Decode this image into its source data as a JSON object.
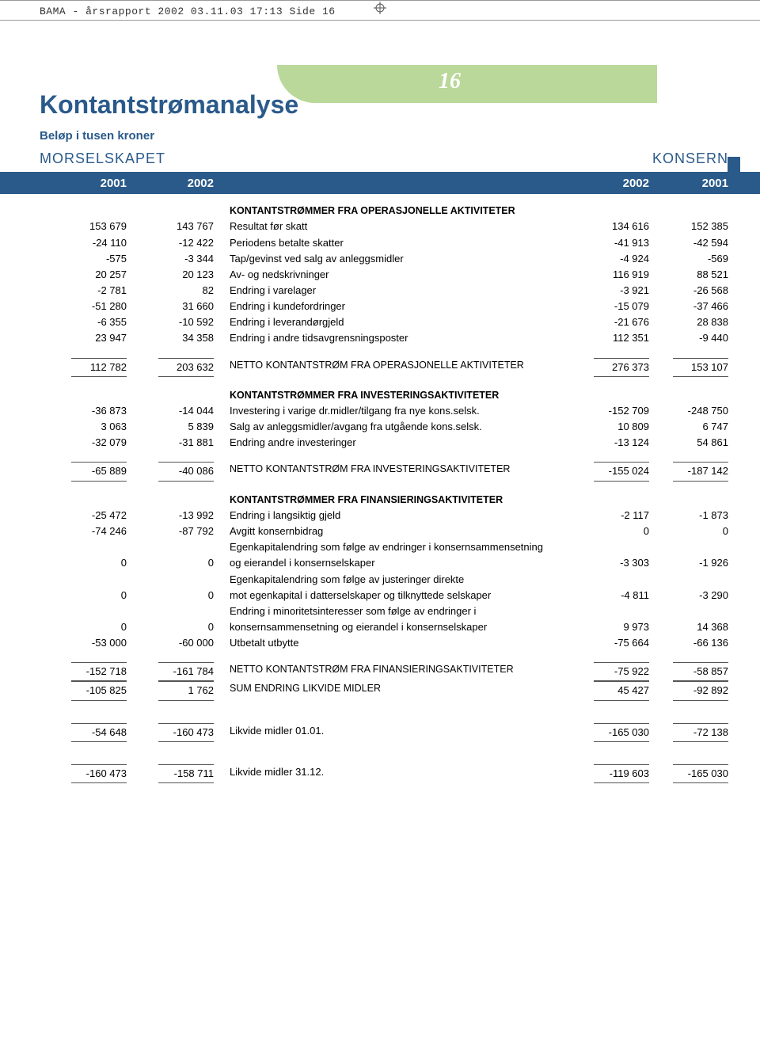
{
  "printHeader": "BAMA - årsrapport 2002  03.11.03  17:13  Side 16",
  "pageNumber": "16",
  "title": "Kontantstrømanalyse",
  "subtitle": "Beløp i tusen kroner",
  "leftEntity": "MORSELSKAPET",
  "rightEntity": "KONSERN",
  "years": {
    "c1": "2001",
    "c2": "2002",
    "c4": "2002",
    "c5": "2001"
  },
  "sections": [
    {
      "heading": "KONTANTSTRØMMER FRA OPERASJONELLE AKTIVITETER",
      "rows": [
        {
          "c1": "153 679",
          "c2": "143 767",
          "label": "Resultat før skatt",
          "c4": "134 616",
          "c5": "152 385"
        },
        {
          "c1": "-24 110",
          "c2": "-12 422",
          "label": "Periodens betalte skatter",
          "c4": "-41 913",
          "c5": "-42 594"
        },
        {
          "c1": "-575",
          "c2": "-3 344",
          "label": "Tap/gevinst ved salg av anleggsmidler",
          "c4": "-4 924",
          "c5": "-569"
        },
        {
          "c1": "20 257",
          "c2": "20 123",
          "label": "Av- og nedskrivninger",
          "c4": "116 919",
          "c5": "88 521"
        },
        {
          "c1": "-2 781",
          "c2": "82",
          "label": "Endring i varelager",
          "c4": "-3 921",
          "c5": "-26 568"
        },
        {
          "c1": "-51 280",
          "c2": "31 660",
          "label": "Endring i kundefordringer",
          "c4": "-15 079",
          "c5": "-37 466"
        },
        {
          "c1": "-6 355",
          "c2": "-10 592",
          "label": "Endring i leverandørgjeld",
          "c4": "-21 676",
          "c5": "28 838"
        },
        {
          "c1": "23 947",
          "c2": "34 358",
          "label": "Endring i andre tidsavgrensningsposter",
          "c4": "112 351",
          "c5": "-9 440"
        }
      ],
      "totals": [
        {
          "c1": "112 782",
          "c2": "203 632",
          "label": "NETTO KONTANTSTRØM FRA OPERASJONELLE AKTIVITETER",
          "c4": "276 373",
          "c5": "153 107"
        }
      ]
    },
    {
      "heading": "KONTANTSTRØMMER FRA INVESTERINGSAKTIVITETER",
      "rows": [
        {
          "c1": "-36 873",
          "c2": "-14 044",
          "label": "Investering i varige dr.midler/tilgang fra nye kons.selsk.",
          "c4": "-152 709",
          "c5": "-248 750"
        },
        {
          "c1": "3 063",
          "c2": "5 839",
          "label": "Salg av anleggsmidler/avgang fra utgående kons.selsk.",
          "c4": "10 809",
          "c5": "6 747"
        },
        {
          "c1": "-32 079",
          "c2": "-31 881",
          "label": "Endring andre investeringer",
          "c4": "-13 124",
          "c5": "54 861"
        }
      ],
      "totals": [
        {
          "c1": "-65 889",
          "c2": "-40 086",
          "label": "NETTO KONTANTSTRØM FRA INVESTERINGSAKTIVITETER",
          "c4": "-155 024",
          "c5": "-187 142"
        }
      ]
    },
    {
      "heading": "KONTANTSTRØMMER FRA FINANSIERINGSAKTIVITETER",
      "rows": [
        {
          "c1": "-25 472",
          "c2": "-13 992",
          "label": "Endring i langsiktig gjeld",
          "c4": "-2 117",
          "c5": "-1 873"
        },
        {
          "c1": "-74 246",
          "c2": "-87 792",
          "label": "Avgitt konsernbidrag",
          "c4": "0",
          "c5": "0"
        },
        {
          "c1": "",
          "c2": "",
          "label": "Egenkapitalendring som følge av endringer i konsernsammensetning",
          "c4": "",
          "c5": ""
        },
        {
          "c1": "0",
          "c2": "0",
          "label": "og eierandel i konsernselskaper",
          "c4": "-3 303",
          "c5": "-1 926"
        },
        {
          "c1": "",
          "c2": "",
          "label": "Egenkapitalendring som følge av justeringer direkte",
          "c4": "",
          "c5": ""
        },
        {
          "c1": "0",
          "c2": "0",
          "label": "mot egenkapital i datterselskaper og tilknyttede selskaper",
          "c4": "-4 811",
          "c5": "-3 290"
        },
        {
          "c1": "",
          "c2": "",
          "label": "Endring i minoritetsinteresser som følge av endringer i",
          "c4": "",
          "c5": ""
        },
        {
          "c1": "0",
          "c2": "0",
          "label": "konsernsammensetning og eierandel i konsernselskaper",
          "c4": "9 973",
          "c5": "14 368"
        },
        {
          "c1": "-53 000",
          "c2": "-60 000",
          "label": "Utbetalt utbytte",
          "c4": "-75 664",
          "c5": "-66 136"
        }
      ],
      "totals": [
        {
          "c1": "-152 718",
          "c2": "-161 784",
          "label": "NETTO KONTANTSTRØM FRA FINANSIERINGSAKTIVITETER",
          "c4": "-75 922",
          "c5": "-58 857"
        },
        {
          "c1": "-105 825",
          "c2": "1 762",
          "label": "SUM ENDRING LIKVIDE MIDLER",
          "c4": "45 427",
          "c5": "-92 892"
        }
      ]
    },
    {
      "heading": "",
      "rows": [],
      "totals": [
        {
          "c1": "-54 648",
          "c2": "-160 473",
          "label": "Likvide midler 01.01.",
          "c4": "-165 030",
          "c5": "-72 138"
        }
      ]
    },
    {
      "heading": "",
      "rows": [],
      "totals": [
        {
          "c1": "-160 473",
          "c2": "-158 711",
          "label": "Likvide midler 31.12.",
          "c4": "-119 603",
          "c5": "-165 030"
        }
      ]
    }
  ],
  "colors": {
    "brand": "#2a5a8a",
    "tab": "#b9d89a",
    "text": "#000000",
    "rule": "#555555"
  }
}
